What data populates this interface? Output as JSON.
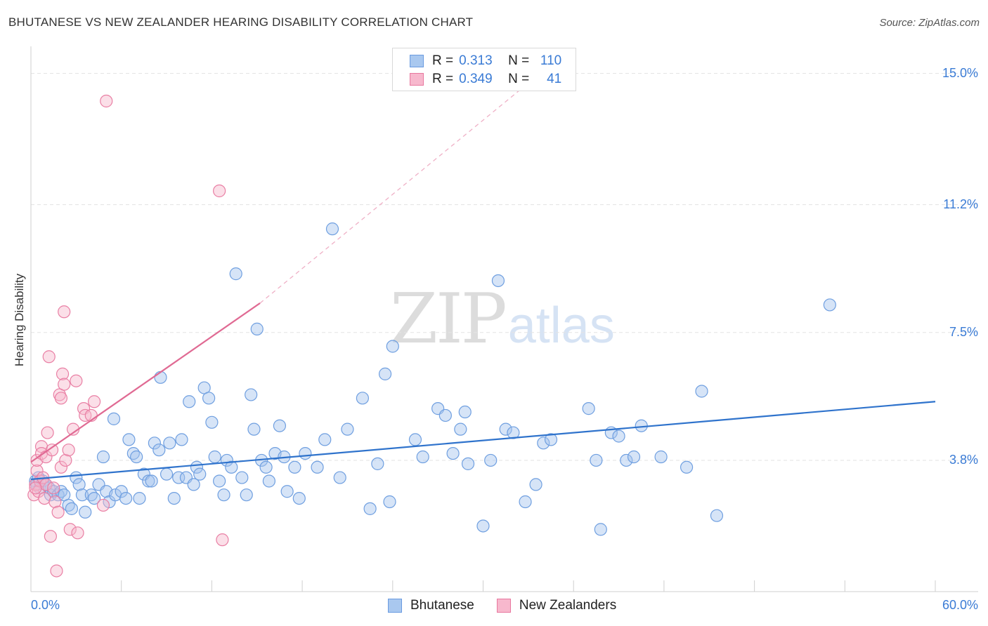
{
  "header": {
    "title": "BHUTANESE VS NEW ZEALANDER HEARING DISABILITY CORRELATION CHART",
    "source": "Source: ZipAtlas.com"
  },
  "watermark": {
    "zip": "ZIP",
    "atlas": "atlas"
  },
  "stats": [
    {
      "r_label": "R =",
      "r_value": "0.313",
      "n_label": "N =",
      "n_value": "110",
      "color": "#a9c8ef",
      "border": "#6a9be0"
    },
    {
      "r_label": "R =",
      "r_value": "0.349",
      "n_label": "N =",
      "n_value": "41",
      "color": "#f7b8cd",
      "border": "#e8789f"
    }
  ],
  "legend": [
    {
      "label": "Bhutanese",
      "color": "#a9c8ef",
      "border": "#6a9be0"
    },
    {
      "label": "New Zealanders",
      "color": "#f7b8cd",
      "border": "#e8789f"
    }
  ],
  "colors": {
    "blue_fill": "rgba(164,196,238,0.45)",
    "blue_stroke": "#6f9fe0",
    "blue_line": "#2f73cc",
    "pink_fill": "rgba(247,184,205,0.45)",
    "pink_stroke": "#e97fa4",
    "pink_line": "#e06a93",
    "tick_text": "#3a7bd5",
    "grid": "#e3e3e3"
  },
  "chart_data": {
    "type": "scatter",
    "title": "BHUTANESE VS NEW ZEALANDER HEARING DISABILITY CORRELATION CHART",
    "xlabel": "",
    "ylabel": "Hearing Disability",
    "xlim": [
      0,
      60
    ],
    "ylim": [
      0,
      15.5
    ],
    "x_tick_labels": [
      "0.0%",
      "60.0%"
    ],
    "y_ticks": [
      3.8,
      7.5,
      11.2,
      15.0
    ],
    "y_tick_labels": [
      "3.8%",
      "7.5%",
      "11.2%",
      "15.0%"
    ],
    "series": [
      {
        "name": "Bhutanese",
        "R": 0.313,
        "N": 110,
        "trend": {
          "x": [
            0,
            60
          ],
          "y": [
            3.25,
            5.5
          ]
        },
        "points": [
          [
            0.3,
            3.2
          ],
          [
            0.4,
            3.1
          ],
          [
            0.5,
            3.3
          ],
          [
            0.6,
            3.0
          ],
          [
            0.8,
            3.2
          ],
          [
            1.0,
            3.1
          ],
          [
            1.2,
            3.0
          ],
          [
            1.3,
            2.8
          ],
          [
            1.5,
            2.9
          ],
          [
            1.8,
            2.8
          ],
          [
            2.0,
            2.9
          ],
          [
            2.2,
            2.8
          ],
          [
            2.5,
            2.5
          ],
          [
            2.7,
            2.4
          ],
          [
            3.0,
            3.3
          ],
          [
            3.2,
            3.1
          ],
          [
            3.4,
            2.8
          ],
          [
            3.6,
            2.3
          ],
          [
            4.0,
            2.8
          ],
          [
            4.2,
            2.7
          ],
          [
            4.5,
            3.1
          ],
          [
            4.8,
            3.9
          ],
          [
            5.0,
            2.9
          ],
          [
            5.2,
            2.6
          ],
          [
            5.5,
            5.0
          ],
          [
            5.6,
            2.8
          ],
          [
            6.0,
            2.9
          ],
          [
            6.3,
            2.7
          ],
          [
            6.5,
            4.4
          ],
          [
            6.8,
            4.0
          ],
          [
            7.0,
            3.9
          ],
          [
            7.2,
            2.7
          ],
          [
            7.5,
            3.4
          ],
          [
            7.8,
            3.2
          ],
          [
            8.0,
            3.2
          ],
          [
            8.2,
            4.3
          ],
          [
            8.5,
            4.1
          ],
          [
            8.6,
            6.2
          ],
          [
            9.0,
            3.4
          ],
          [
            9.2,
            4.3
          ],
          [
            9.5,
            2.7
          ],
          [
            9.8,
            3.3
          ],
          [
            10.0,
            4.4
          ],
          [
            10.3,
            3.3
          ],
          [
            10.5,
            5.5
          ],
          [
            10.8,
            3.1
          ],
          [
            11.0,
            3.6
          ],
          [
            11.2,
            3.4
          ],
          [
            11.5,
            5.9
          ],
          [
            11.8,
            5.6
          ],
          [
            12.0,
            4.9
          ],
          [
            12.2,
            3.9
          ],
          [
            12.5,
            3.2
          ],
          [
            12.8,
            2.8
          ],
          [
            13.0,
            3.8
          ],
          [
            13.3,
            3.6
          ],
          [
            13.6,
            9.2
          ],
          [
            14.0,
            3.3
          ],
          [
            14.3,
            2.8
          ],
          [
            14.6,
            5.7
          ],
          [
            14.8,
            4.7
          ],
          [
            15.0,
            7.6
          ],
          [
            15.3,
            3.8
          ],
          [
            15.6,
            3.6
          ],
          [
            15.8,
            3.2
          ],
          [
            16.2,
            4.0
          ],
          [
            16.5,
            4.8
          ],
          [
            16.8,
            3.9
          ],
          [
            17.0,
            2.9
          ],
          [
            17.5,
            3.6
          ],
          [
            17.8,
            2.7
          ],
          [
            18.2,
            4.0
          ],
          [
            19.0,
            3.6
          ],
          [
            19.5,
            4.4
          ],
          [
            20.0,
            10.5
          ],
          [
            20.5,
            3.3
          ],
          [
            21.0,
            4.7
          ],
          [
            22.0,
            5.6
          ],
          [
            22.5,
            2.4
          ],
          [
            23.0,
            3.7
          ],
          [
            23.5,
            6.3
          ],
          [
            23.8,
            2.6
          ],
          [
            24.0,
            7.1
          ],
          [
            25.5,
            4.4
          ],
          [
            26.0,
            3.9
          ],
          [
            27.0,
            5.3
          ],
          [
            27.5,
            5.1
          ],
          [
            28.0,
            4.0
          ],
          [
            28.5,
            4.7
          ],
          [
            28.8,
            5.2
          ],
          [
            29.0,
            3.7
          ],
          [
            30.0,
            1.9
          ],
          [
            30.5,
            3.8
          ],
          [
            31.0,
            9.0
          ],
          [
            31.5,
            4.7
          ],
          [
            32.0,
            4.6
          ],
          [
            32.8,
            2.6
          ],
          [
            33.5,
            3.1
          ],
          [
            34.0,
            4.3
          ],
          [
            34.5,
            4.4
          ],
          [
            37.0,
            5.3
          ],
          [
            37.5,
            3.8
          ],
          [
            38.5,
            4.6
          ],
          [
            39.0,
            4.5
          ],
          [
            39.5,
            3.8
          ],
          [
            40.0,
            3.9
          ],
          [
            40.5,
            4.8
          ],
          [
            41.8,
            3.9
          ],
          [
            43.5,
            3.6
          ],
          [
            44.5,
            5.8
          ],
          [
            45.5,
            2.2
          ],
          [
            53.0,
            8.3
          ],
          [
            37.8,
            1.8
          ]
        ]
      },
      {
        "name": "New Zealanders",
        "R": 0.349,
        "N": 41,
        "trend": {
          "x": [
            0,
            15.2
          ],
          "y": [
            3.75,
            8.35
          ]
        },
        "trend_dashed": {
          "x": [
            15.2,
            33.5
          ],
          "y": [
            8.35,
            14.9
          ]
        },
        "points": [
          [
            0.2,
            2.8
          ],
          [
            0.3,
            3.1
          ],
          [
            0.4,
            3.5
          ],
          [
            0.4,
            3.8
          ],
          [
            0.5,
            2.9
          ],
          [
            0.6,
            3.2
          ],
          [
            0.7,
            4.2
          ],
          [
            0.7,
            4.0
          ],
          [
            0.8,
            3.3
          ],
          [
            0.9,
            2.7
          ],
          [
            1.0,
            3.1
          ],
          [
            1.0,
            3.9
          ],
          [
            1.1,
            4.6
          ],
          [
            1.2,
            6.8
          ],
          [
            1.3,
            1.6
          ],
          [
            1.4,
            4.1
          ],
          [
            1.5,
            3.0
          ],
          [
            1.6,
            2.6
          ],
          [
            1.7,
            0.6
          ],
          [
            1.8,
            2.3
          ],
          [
            1.9,
            5.7
          ],
          [
            2.0,
            3.6
          ],
          [
            2.0,
            5.6
          ],
          [
            2.1,
            6.3
          ],
          [
            2.2,
            6.0
          ],
          [
            2.2,
            8.1
          ],
          [
            2.3,
            3.8
          ],
          [
            2.5,
            4.1
          ],
          [
            2.6,
            1.8
          ],
          [
            2.8,
            4.7
          ],
          [
            3.0,
            6.1
          ],
          [
            3.1,
            1.7
          ],
          [
            3.5,
            5.3
          ],
          [
            3.6,
            5.1
          ],
          [
            4.0,
            5.1
          ],
          [
            4.2,
            5.5
          ],
          [
            4.8,
            2.5
          ],
          [
            5.0,
            14.2
          ],
          [
            12.5,
            11.6
          ],
          [
            12.7,
            1.5
          ],
          [
            0.3,
            3.0
          ]
        ]
      }
    ]
  }
}
